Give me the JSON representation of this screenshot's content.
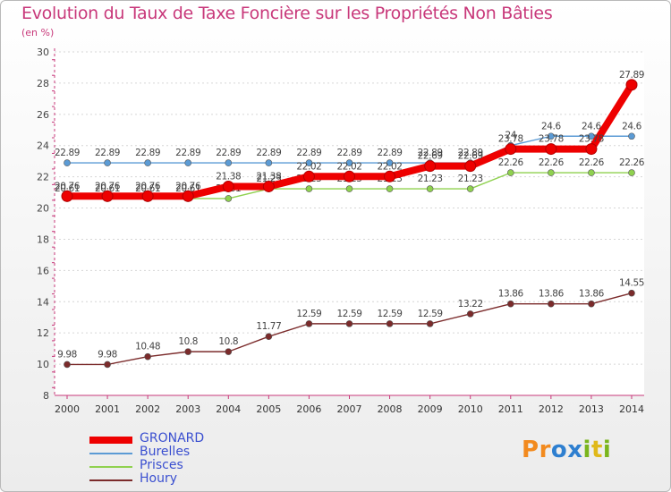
{
  "title": "Evolution du Taux de Taxe Foncière sur les Propriétés Non Bâties",
  "subtitle": "(en %)",
  "logo": [
    "P",
    "r",
    "o",
    "x",
    "i",
    "t",
    "i"
  ],
  "colors": {
    "title": "#c8387a",
    "axis": "#c8387a",
    "legend_text": "#3a4fd0",
    "logo": [
      "#f28a1e",
      "#f28a1e",
      "#2e7fd0",
      "#2e7fd0",
      "#7ab51d",
      "#e0b91a",
      "#7ab51d"
    ]
  },
  "chart_data": {
    "type": "line",
    "x": [
      2000,
      2001,
      2002,
      2003,
      2004,
      2005,
      2006,
      2007,
      2008,
      2009,
      2010,
      2011,
      2012,
      2013,
      2014
    ],
    "ylim": [
      8,
      30
    ],
    "yticks": [
      8,
      10,
      12,
      14,
      16,
      18,
      20,
      22,
      24,
      26,
      28,
      30
    ],
    "series": [
      {
        "name": "Burelles",
        "color": "#5b9bd5",
        "values": [
          22.89,
          22.89,
          22.89,
          22.89,
          22.89,
          22.89,
          22.89,
          22.89,
          22.89,
          22.89,
          22.89,
          24.0,
          24.6,
          24.6,
          24.6
        ],
        "labels": [
          "22.89",
          "22.89",
          "22.89",
          "22.89",
          "22.89",
          "22.89",
          "22.89",
          "22.89",
          "22.89",
          "22.89",
          "22.89",
          "24",
          "24.6",
          "24.6",
          "24.6"
        ]
      },
      {
        "name": "Prisces",
        "color": "#8fd14f",
        "values": [
          20.61,
          20.61,
          20.61,
          20.61,
          20.61,
          21.23,
          21.23,
          21.23,
          21.23,
          21.23,
          21.23,
          22.26,
          22.26,
          22.26,
          22.26
        ],
        "labels": [
          "20.61",
          "20.61",
          "20.61",
          "20.61",
          "20.61",
          "21.23",
          "21.23",
          "21.23",
          "21.23",
          "21.23",
          "21.23",
          "22.26",
          "22.26",
          "22.26",
          "22.26"
        ]
      },
      {
        "name": "Houry",
        "color": "#7b2b2b",
        "values": [
          9.98,
          9.98,
          10.48,
          10.8,
          10.8,
          11.77,
          12.59,
          12.59,
          12.59,
          12.59,
          13.22,
          13.86,
          13.86,
          13.86,
          14.55
        ],
        "labels": [
          "9.98",
          "9.98",
          "10.48",
          "10.8",
          "10.8",
          "11.77",
          "12.59",
          "12.59",
          "12.59",
          "12.59",
          "13.22",
          "13.86",
          "13.86",
          "13.86",
          "14.55"
        ]
      },
      {
        "name": "GRONARD",
        "color": "#ee0000",
        "values": [
          20.76,
          20.76,
          20.76,
          20.76,
          21.38,
          21.38,
          22.02,
          22.02,
          22.02,
          22.69,
          22.69,
          23.78,
          23.78,
          23.78,
          27.89
        ],
        "labels": [
          "20.76",
          "20.76",
          "20.76",
          "20.76",
          "21.38",
          "21.38",
          "22.02",
          "22.02",
          "22.02",
          "22.69",
          "22.69",
          "23.78",
          "23.78",
          "23.78",
          "27.89"
        ]
      }
    ],
    "legend": [
      "GRONARD",
      "Burelles",
      "Prisces",
      "Houry"
    ],
    "legend_position": "bottom-left"
  }
}
